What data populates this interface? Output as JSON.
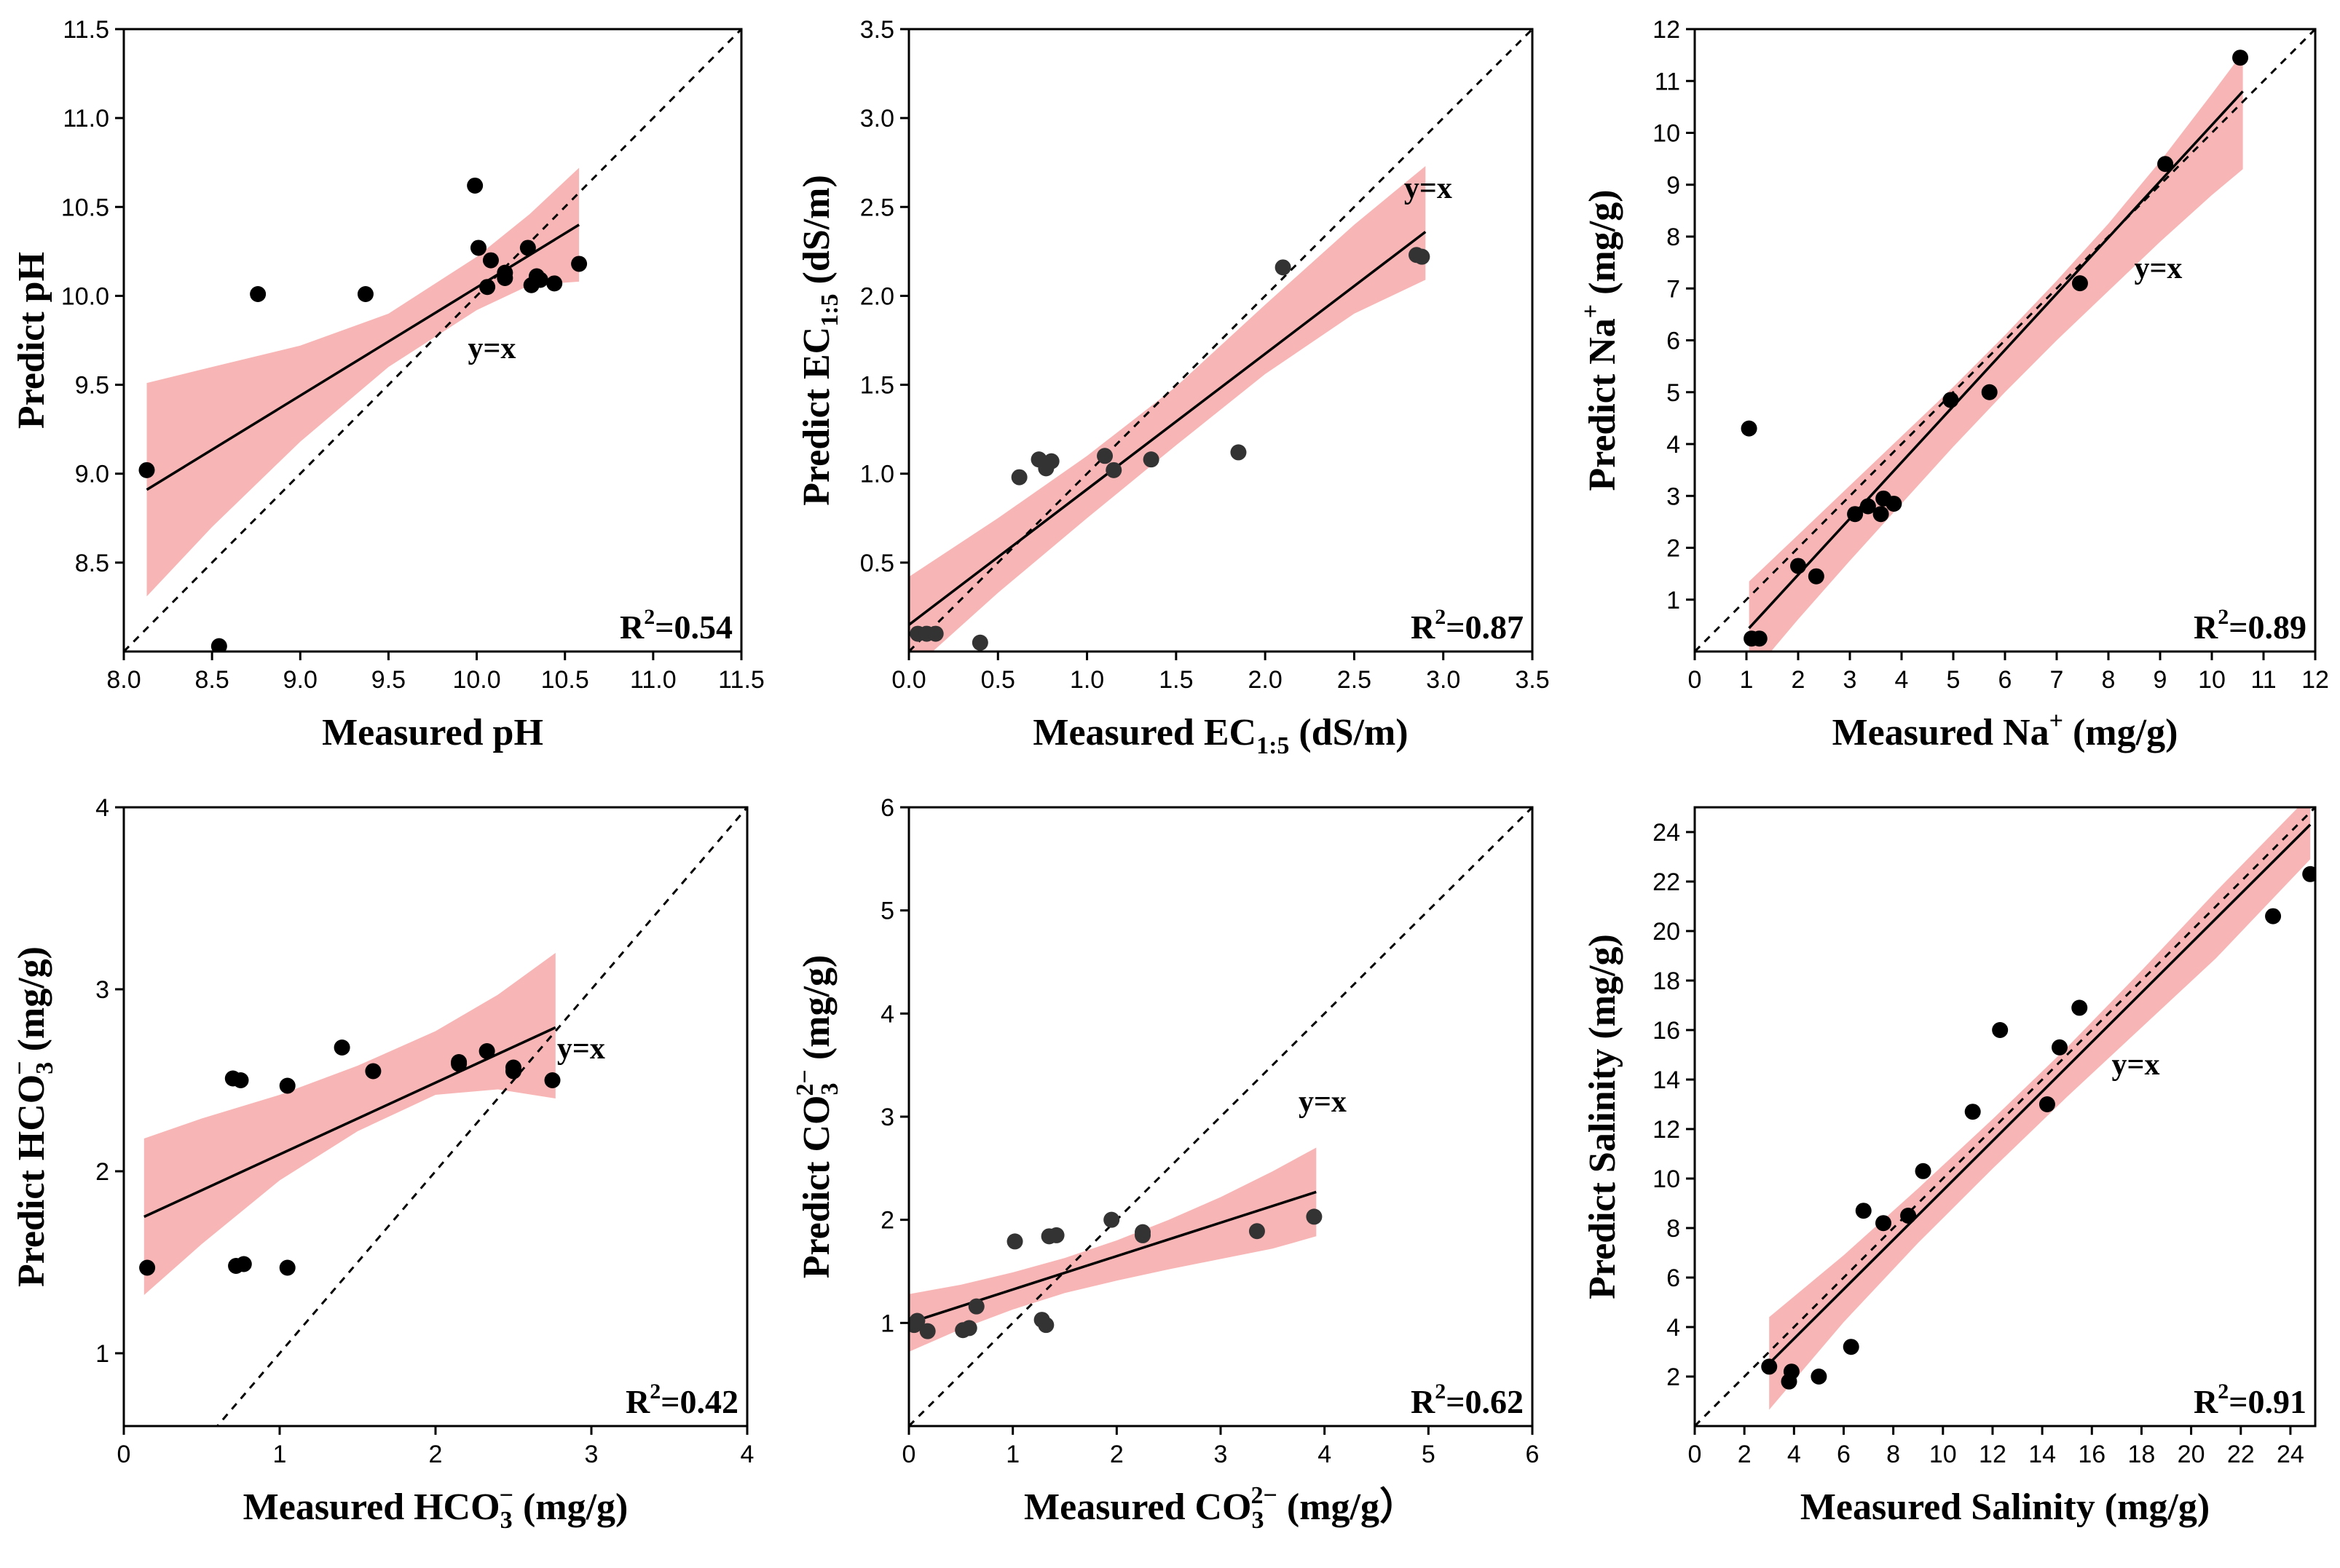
{
  "chart_data": [
    {
      "type": "scatter",
      "xlabel": "Measured pH",
      "ylabel": "Predict pH",
      "xlim": [
        8.0,
        11.5
      ],
      "ylim": [
        8.0,
        11.5
      ],
      "xticks": [
        8.0,
        8.5,
        9.0,
        9.5,
        10.0,
        10.5,
        11.0,
        11.5
      ],
      "xtick_labels": [
        "8.0",
        "8.5",
        "9.0",
        "9.5",
        "10.0",
        "10.5",
        "11.0",
        "11.5"
      ],
      "yticks": [
        8.5,
        9.0,
        9.5,
        10.0,
        10.5,
        11.0,
        11.5
      ],
      "ytick_labels": [
        "8.5",
        "9.0",
        "9.5",
        "10.0",
        "10.5",
        "11.0",
        "11.5"
      ],
      "annotations": {
        "identity_label": "y=x",
        "identity_pos": [
          9.95,
          9.65
        ],
        "r2_label": "R²=0.54"
      },
      "points": {
        "x": [
          8.13,
          8.54,
          8.76,
          9.37,
          9.99,
          10.01,
          10.06,
          10.08,
          10.16,
          10.16,
          10.29,
          10.31,
          10.34,
          10.36,
          10.44,
          10.58
        ],
        "y": [
          9.02,
          8.03,
          10.01,
          10.01,
          10.62,
          10.27,
          10.05,
          10.2,
          10.1,
          10.13,
          10.27,
          10.06,
          10.11,
          10.09,
          10.07,
          10.18
        ]
      },
      "fit": {
        "x": [
          8.13,
          10.58
        ],
        "y": [
          8.91,
          10.4
        ]
      },
      "band": {
        "x": [
          8.13,
          8.5,
          9.0,
          9.5,
          10.0,
          10.3,
          10.58
        ],
        "upper": [
          9.51,
          9.6,
          9.72,
          9.9,
          10.22,
          10.46,
          10.72
        ],
        "lower": [
          8.31,
          8.7,
          9.18,
          9.6,
          9.92,
          10.06,
          10.08
        ]
      }
    },
    {
      "type": "scatter",
      "xlabel": "Measured EC",
      "xlabel_sub": "1:5",
      "xlabel_unit": " (dS/m)",
      "ylabel": "Predict EC",
      "ylabel_sub": "1:5",
      "ylabel_unit": " (dS/m)",
      "xlim": [
        0.0,
        3.5
      ],
      "ylim": [
        0.0,
        3.5
      ],
      "xticks": [
        0.0,
        0.5,
        1.0,
        1.5,
        2.0,
        2.5,
        3.0,
        3.5
      ],
      "xtick_labels": [
        "0.0",
        "0.5",
        "1.0",
        "1.5",
        "2.0",
        "2.5",
        "3.0",
        "3.5"
      ],
      "yticks": [
        0.5,
        1.0,
        1.5,
        2.0,
        2.5,
        3.0,
        3.5
      ],
      "ytick_labels": [
        "0.5",
        "1.0",
        "1.5",
        "2.0",
        "2.5",
        "3.0",
        "3.5"
      ],
      "annotations": {
        "identity_label": "y=x",
        "identity_pos": [
          2.78,
          2.55
        ],
        "r2_label": "R²=0.87"
      },
      "points": {
        "x": [
          0.05,
          0.1,
          0.15,
          0.4,
          0.62,
          0.73,
          0.77,
          0.8,
          1.1,
          1.15,
          1.36,
          1.85,
          2.1,
          2.85,
          2.88
        ],
        "y": [
          0.1,
          0.1,
          0.1,
          0.05,
          0.98,
          1.08,
          1.03,
          1.07,
          1.1,
          1.02,
          1.08,
          1.12,
          2.16,
          2.23,
          2.22
        ]
      },
      "fit": {
        "x": [
          0.0,
          2.9
        ],
        "y": [
          0.15,
          2.36
        ]
      },
      "band": {
        "x": [
          0.0,
          0.5,
          1.0,
          1.5,
          2.0,
          2.5,
          2.9
        ],
        "upper": [
          0.42,
          0.75,
          1.1,
          1.49,
          1.95,
          2.4,
          2.73
        ],
        "lower": [
          -0.12,
          0.33,
          0.75,
          1.16,
          1.56,
          1.9,
          2.09
        ]
      }
    },
    {
      "type": "scatter",
      "xlabel": "Measured Na",
      "xlabel_sup": "+",
      "xlabel_unit": " (mg/g)",
      "ylabel": "Predict Na",
      "ylabel_sup": "+",
      "ylabel_unit": " (mg/g)",
      "xlim": [
        0,
        12
      ],
      "ylim": [
        0,
        12
      ],
      "xticks": [
        0,
        1,
        2,
        3,
        4,
        5,
        6,
        7,
        8,
        9,
        10,
        11,
        12
      ],
      "xtick_labels": [
        "0",
        "1",
        "2",
        "3",
        "4",
        "5",
        "6",
        "7",
        "8",
        "9",
        "10",
        "11",
        "12"
      ],
      "yticks": [
        1,
        2,
        3,
        4,
        5,
        6,
        7,
        8,
        9,
        10,
        11,
        12
      ],
      "ytick_labels": [
        "1",
        "2",
        "3",
        "4",
        "5",
        "6",
        "7",
        "8",
        "9",
        "10",
        "11",
        "12"
      ],
      "annotations": {
        "identity_label": "y=x",
        "identity_pos": [
          8.5,
          7.2
        ],
        "r2_label": "R²=0.89"
      },
      "points": {
        "x": [
          1.05,
          1.1,
          1.25,
          2.0,
          2.35,
          3.1,
          3.35,
          3.6,
          3.65,
          3.85,
          4.95,
          5.7,
          7.45,
          9.1,
          10.55
        ],
        "y": [
          4.3,
          0.25,
          0.25,
          1.65,
          1.45,
          2.65,
          2.8,
          2.65,
          2.95,
          2.85,
          4.85,
          5.0,
          7.1,
          9.4,
          11.45
        ]
      },
      "fit": {
        "x": [
          1.05,
          10.6
        ],
        "y": [
          0.45,
          10.8
        ]
      },
      "band": {
        "x": [
          1.05,
          2.0,
          3.0,
          4.0,
          5.0,
          6.0,
          7.0,
          8.0,
          9.0,
          10.0,
          10.6
        ],
        "upper": [
          1.35,
          2.25,
          3.2,
          4.15,
          5.1,
          6.1,
          7.15,
          8.25,
          9.45,
          10.75,
          11.55
        ],
        "lower": [
          -0.5,
          0.62,
          1.75,
          2.85,
          3.95,
          5.0,
          6.0,
          6.95,
          7.9,
          8.8,
          9.3
        ]
      }
    },
    {
      "type": "scatter",
      "xlabel": "Measured HCO",
      "xlabel_sub": "3",
      "xlabel_sup": "−",
      "xlabel_unit": " (mg/g)",
      "ylabel": "Predict HCO",
      "ylabel_sub": "3",
      "ylabel_sup": "−",
      "ylabel_unit": " (mg/g)",
      "xlim": [
        0,
        4
      ],
      "ylim": [
        0.6,
        4.0
      ],
      "xticks": [
        0,
        1,
        2,
        3,
        4
      ],
      "xtick_labels": [
        "0",
        "1",
        "2",
        "3",
        "4"
      ],
      "yticks": [
        1,
        2,
        3,
        4
      ],
      "ytick_labels": [
        "1",
        "2",
        "3",
        "4"
      ],
      "annotations": {
        "identity_label": "y=x",
        "identity_pos": [
          2.78,
          2.62
        ],
        "r2_label": "R²=0.42"
      },
      "points": {
        "x": [
          0.15,
          0.7,
          0.72,
          0.75,
          0.77,
          1.05,
          1.05,
          1.4,
          1.6,
          2.15,
          2.15,
          2.33,
          2.5,
          2.5,
          2.75
        ],
        "y": [
          1.47,
          2.51,
          1.48,
          2.5,
          1.49,
          2.47,
          1.47,
          2.68,
          2.55,
          2.59,
          2.6,
          2.66,
          2.57,
          2.55,
          2.5
        ]
      },
      "fit": {
        "x": [
          0.13,
          2.77
        ],
        "y": [
          1.75,
          2.79
        ]
      },
      "band": {
        "x": [
          0.13,
          0.5,
          1.0,
          1.5,
          2.0,
          2.4,
          2.77
        ],
        "upper": [
          2.18,
          2.29,
          2.42,
          2.58,
          2.77,
          2.97,
          3.2
        ],
        "lower": [
          1.32,
          1.6,
          1.95,
          2.22,
          2.42,
          2.45,
          2.4
        ]
      }
    },
    {
      "type": "scatter",
      "xlabel": "Measured CO",
      "xlabel_sub": "3",
      "xlabel_sup": "2−",
      "xlabel_unit": " (mg/g）",
      "ylabel": "Predict CO",
      "ylabel_sub": "3",
      "ylabel_sup": "2−",
      "ylabel_unit": " (mg/g)",
      "xlim": [
        0,
        6
      ],
      "ylim": [
        0,
        6
      ],
      "xticks": [
        0,
        1,
        2,
        3,
        4,
        5,
        6
      ],
      "xtick_labels": [
        "0",
        "1",
        "2",
        "3",
        "4",
        "5",
        "6"
      ],
      "yticks": [
        1,
        2,
        3,
        4,
        5,
        6
      ],
      "ytick_labels": [
        "1",
        "2",
        "3",
        "4",
        "5",
        "6"
      ],
      "annotations": {
        "identity_label": "y=x",
        "identity_pos": [
          3.75,
          3.05
        ],
        "r2_label": "R²=0.62"
      },
      "points": {
        "x": [
          0.05,
          0.08,
          0.18,
          0.52,
          0.58,
          0.65,
          1.02,
          1.28,
          1.32,
          1.35,
          1.42,
          1.95,
          2.25,
          2.25,
          3.35,
          3.9
        ],
        "y": [
          0.98,
          1.02,
          0.92,
          0.93,
          0.95,
          1.16,
          1.79,
          1.03,
          0.98,
          1.84,
          1.85,
          2.0,
          1.85,
          1.88,
          1.89,
          2.03
        ]
      },
      "fit": {
        "x": [
          0.0,
          3.92
        ],
        "y": [
          1.0,
          2.27
        ]
      },
      "band": {
        "x": [
          0.0,
          0.5,
          1.0,
          1.5,
          2.0,
          2.5,
          3.0,
          3.5,
          3.92
        ],
        "upper": [
          1.28,
          1.37,
          1.49,
          1.63,
          1.8,
          2.0,
          2.22,
          2.47,
          2.7
        ],
        "lower": [
          0.72,
          0.94,
          1.13,
          1.29,
          1.41,
          1.52,
          1.62,
          1.72,
          1.84
        ]
      }
    },
    {
      "type": "scatter",
      "xlabel": "Measured Salinity (mg/g)",
      "ylabel": "Predict Salinity (mg/g)",
      "xlim": [
        0,
        25
      ],
      "ylim": [
        0,
        25
      ],
      "xticks": [
        0,
        2,
        4,
        6,
        8,
        10,
        12,
        14,
        16,
        18,
        20,
        22,
        24
      ],
      "xtick_labels": [
        "0",
        "2",
        "4",
        "6",
        "8",
        "10",
        "12",
        "14",
        "16",
        "18",
        "20",
        "22",
        "24"
      ],
      "yticks": [
        2,
        4,
        6,
        8,
        10,
        12,
        14,
        16,
        18,
        20,
        22,
        24
      ],
      "ytick_labels": [
        "2",
        "4",
        "6",
        "8",
        "10",
        "12",
        "14",
        "16",
        "18",
        "20",
        "22",
        "24"
      ],
      "annotations": {
        "identity_label": "y=x",
        "identity_pos": [
          16.8,
          14.2
        ],
        "r2_label": "R²=0.91"
      },
      "points": {
        "x": [
          3.0,
          3.8,
          3.9,
          5.0,
          6.3,
          6.8,
          7.6,
          8.6,
          9.2,
          11.2,
          12.3,
          14.2,
          14.7,
          15.5,
          23.3,
          24.8
        ],
        "y": [
          2.4,
          1.8,
          2.2,
          2.0,
          3.2,
          8.7,
          8.2,
          8.5,
          10.3,
          12.7,
          16.0,
          13.0,
          15.3,
          16.9,
          20.6,
          22.3
        ]
      },
      "fit": {
        "x": [
          3.0,
          24.8
        ],
        "y": [
          2.53,
          24.3
        ]
      },
      "band": {
        "x": [
          3.0,
          6.0,
          9.0,
          12.0,
          15.0,
          18.0,
          21.0,
          24.8
        ],
        "upper": [
          4.4,
          6.9,
          9.6,
          12.4,
          15.3,
          18.4,
          21.6,
          25.5
        ],
        "lower": [
          0.66,
          4.2,
          7.4,
          10.4,
          13.3,
          16.1,
          18.9,
          22.9
        ]
      }
    }
  ]
}
